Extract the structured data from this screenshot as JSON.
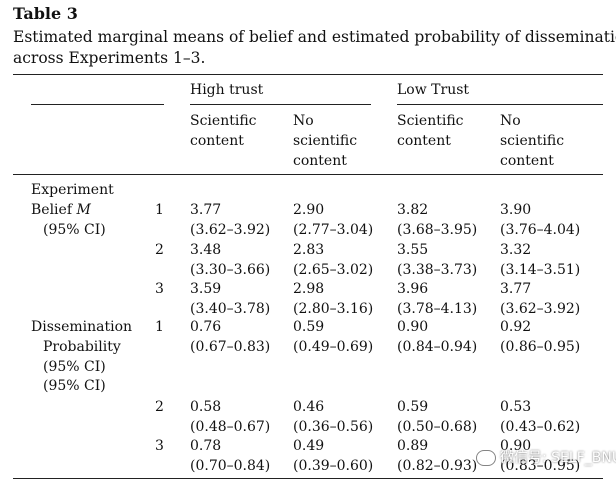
{
  "table": {
    "title": "Table 3",
    "caption_lines": [
      "Estimated marginal means of belief and estimated probability of dissemination",
      "across Experiments 1–3."
    ],
    "group_headers": [
      "High trust",
      "Low Trust"
    ],
    "sub_headers": {
      "high_sci": [
        "Scientific",
        "content"
      ],
      "high_nosci": [
        "No",
        "scientific",
        "content"
      ],
      "low_sci": [
        "Scientific",
        "content"
      ],
      "low_nosci": [
        "No",
        "scientific",
        "content"
      ]
    },
    "row_labels": {
      "experiment": "Experiment",
      "belief": "Belief ",
      "belief_symbol": "M",
      "belief_ci": "(95% CI)",
      "dissemination": "Dissemination",
      "probability": "Probability",
      "dissemination_ci_1": "(95% CI)",
      "dissemination_ci_2": "(95% CI)"
    },
    "belief_rows": [
      {
        "exp": "1",
        "cells": [
          [
            "3.77",
            "(3.62–3.92)"
          ],
          [
            "2.90",
            "(2.77–3.04)"
          ],
          [
            "3.82",
            "(3.68–3.95)"
          ],
          [
            "3.90",
            "(3.76–4.04)"
          ]
        ]
      },
      {
        "exp": "2",
        "cells": [
          [
            "3.48",
            "(3.30–3.66)"
          ],
          [
            "2.83",
            "(2.65–3.02)"
          ],
          [
            "3.55",
            "(3.38–3.73)"
          ],
          [
            "3.32",
            "(3.14–3.51)"
          ]
        ]
      },
      {
        "exp": "3",
        "cells": [
          [
            "3.59",
            "(3.40–3.78)"
          ],
          [
            "2.98",
            "(2.80–3.16)"
          ],
          [
            "3.96",
            "(3.78–4.13)"
          ],
          [
            "3.77",
            "(3.62–3.92)"
          ]
        ]
      }
    ],
    "dissemination_rows": [
      {
        "exp": "1",
        "cells": [
          [
            "0.76",
            "(0.67–0.83)"
          ],
          [
            "0.59",
            "(0.49–0.69)"
          ],
          [
            "0.90",
            "(0.84–0.94)"
          ],
          [
            "0.92",
            "(0.86–0.95)"
          ]
        ]
      },
      {
        "exp": "2",
        "cells": [
          [
            "0.58",
            "(0.48–0.67)"
          ],
          [
            "0.46",
            "(0.36–0.56)"
          ],
          [
            "0.59",
            "(0.50–0.68)"
          ],
          [
            "0.53",
            "(0.43–0.62)"
          ]
        ]
      },
      {
        "exp": "3",
        "cells": [
          [
            "0.78",
            "(0.70–0.84)"
          ],
          [
            "0.49",
            "(0.39–0.60)"
          ],
          [
            "0.89",
            "(0.82–0.93)"
          ],
          [
            "0.90",
            "(0.83–0.95)"
          ]
        ]
      }
    ]
  },
  "watermark": {
    "text": "微信号: SELF_BNU",
    "icon": "wechat-icon"
  }
}
